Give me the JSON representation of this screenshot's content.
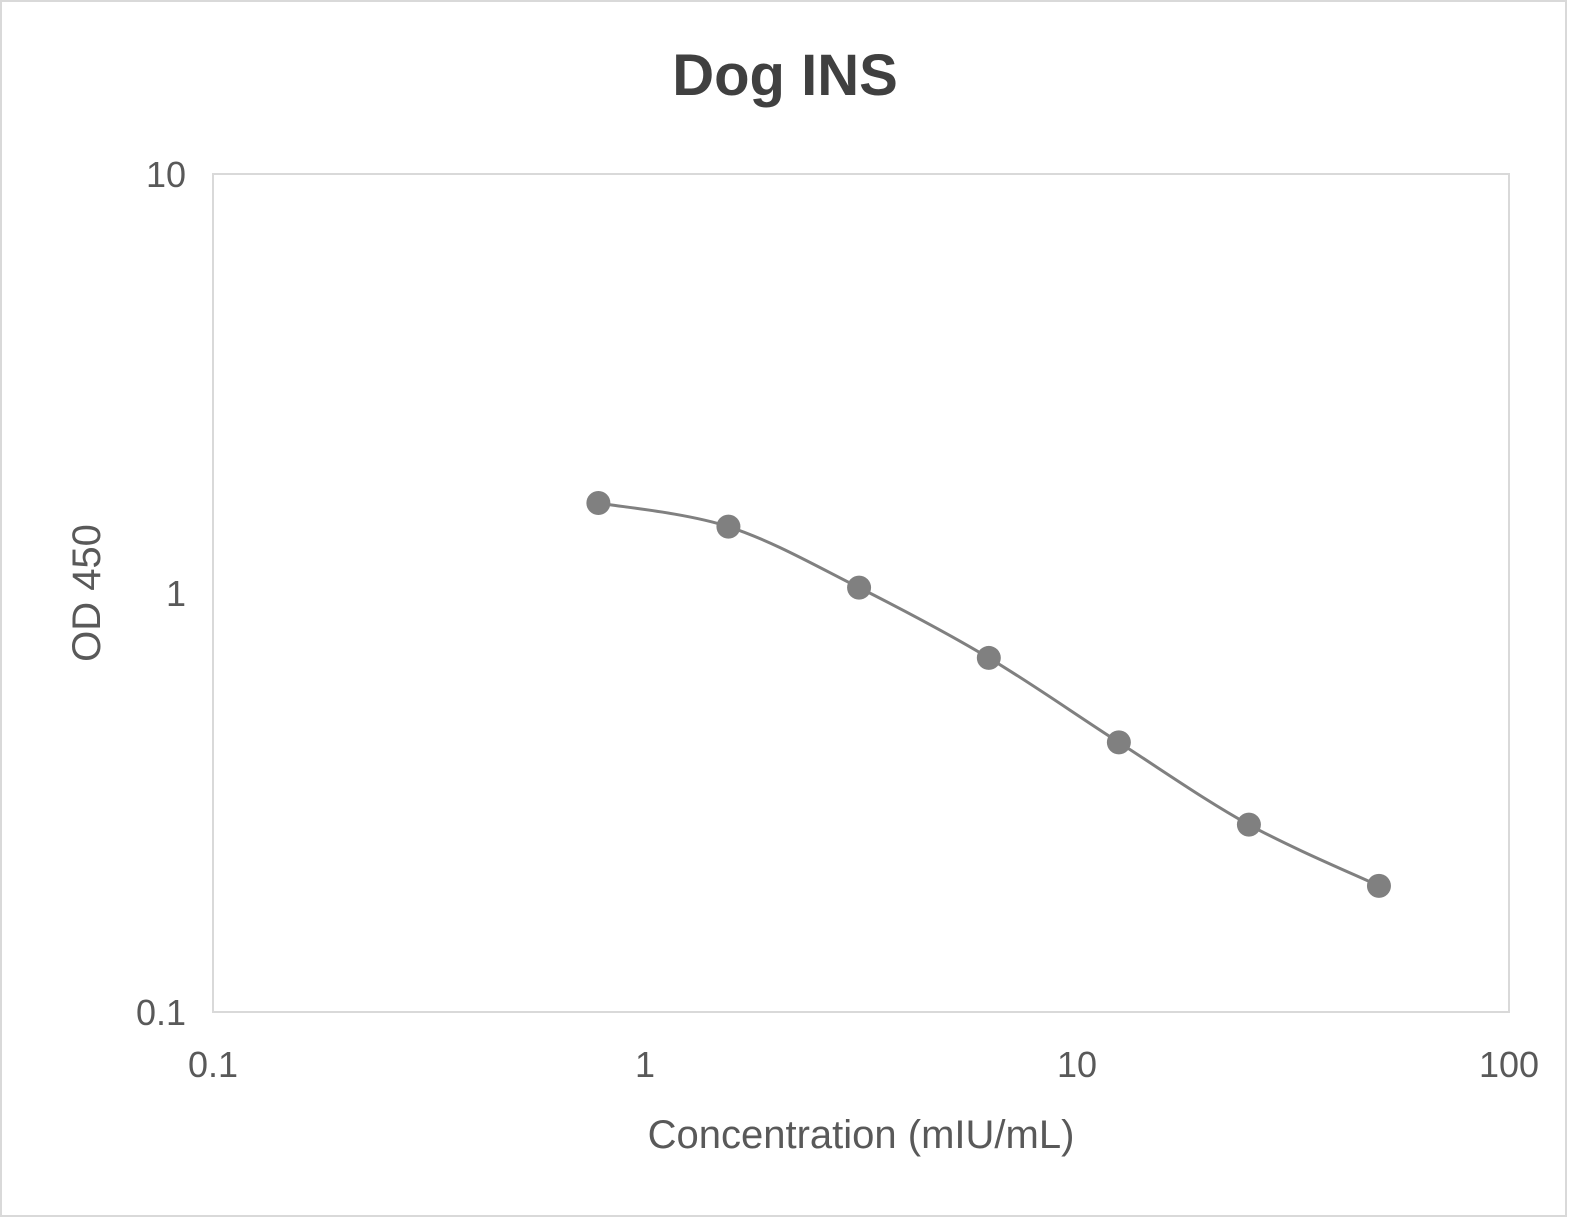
{
  "chart_data": {
    "type": "line",
    "title": "Dog INS",
    "xlabel": "Concentration (mIU/mL)",
    "ylabel": "OD 450",
    "x_scale": "log",
    "y_scale": "log",
    "xlim": [
      0.1,
      100
    ],
    "ylim": [
      0.1,
      10
    ],
    "x_ticks": [
      "0.1",
      "1",
      "10",
      "100"
    ],
    "y_ticks": [
      "0.1",
      "1",
      "10"
    ],
    "grid": false,
    "smooth": true,
    "series": [
      {
        "x": [
          0.78,
          1.56,
          3.13,
          6.25,
          12.5,
          25,
          50
        ],
        "y": [
          1.64,
          1.44,
          1.03,
          0.7,
          0.44,
          0.28,
          0.2
        ],
        "color": "#808080"
      }
    ]
  }
}
